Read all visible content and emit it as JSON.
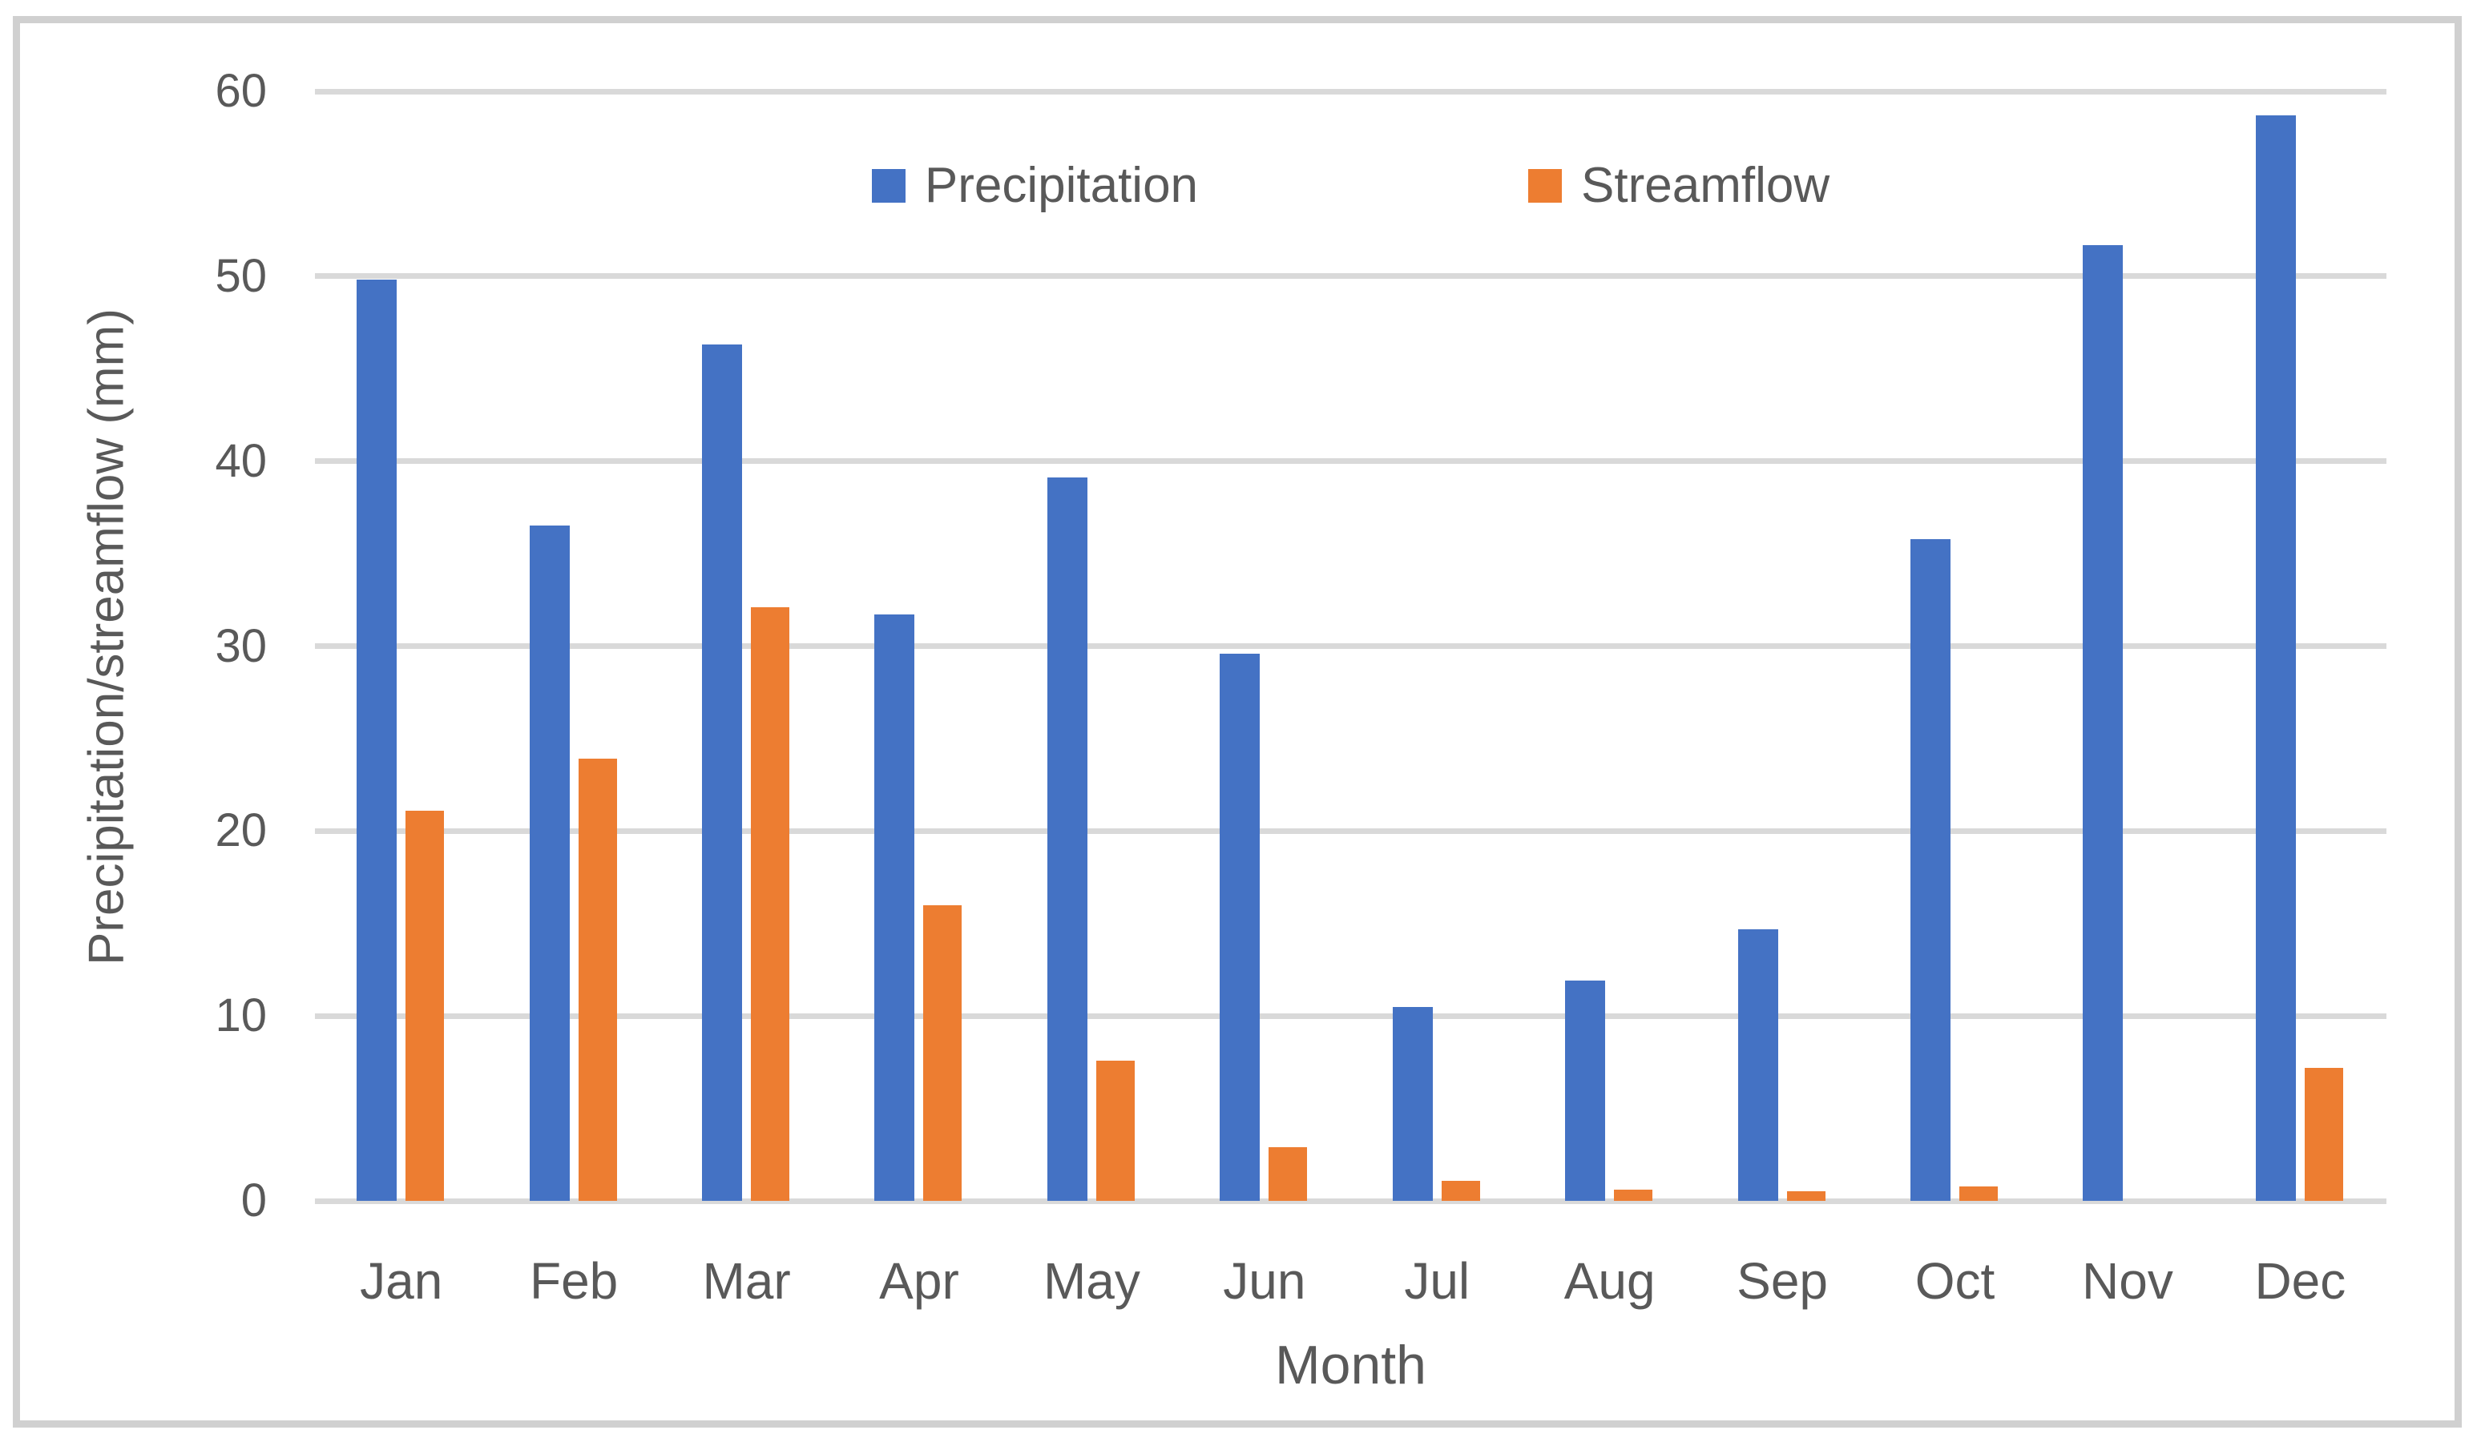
{
  "chart_data": {
    "type": "bar",
    "categories": [
      "Jan",
      "Feb",
      "Mar",
      "Apr",
      "May",
      "Jun",
      "Jul",
      "Aug",
      "Sep",
      "Oct",
      "Nov",
      "Dec"
    ],
    "series": [
      {
        "name": "Precipitation",
        "color": "#4472C4",
        "values": [
          49.8,
          36.5,
          46.3,
          31.7,
          39.1,
          29.6,
          10.5,
          11.9,
          14.7,
          35.8,
          51.7,
          58.7
        ]
      },
      {
        "name": "Streamflow",
        "color": "#ED7D31",
        "values": [
          21.1,
          23.9,
          32.1,
          16.0,
          7.6,
          2.9,
          1.1,
          0.6,
          0.5,
          0.8,
          0,
          7.2
        ]
      }
    ],
    "title": "",
    "xlabel": "Month",
    "ylabel": "Precipitation/streamflow (mm)",
    "ylim": [
      0,
      60
    ],
    "yticks": [
      0,
      10,
      20,
      30,
      40,
      50,
      60
    ],
    "grid": "horizontal",
    "legend_position": "top-center",
    "colors": {
      "gridline": "#d9d9d9",
      "frame_border": "#d0d0d0",
      "text": "#595959"
    }
  }
}
